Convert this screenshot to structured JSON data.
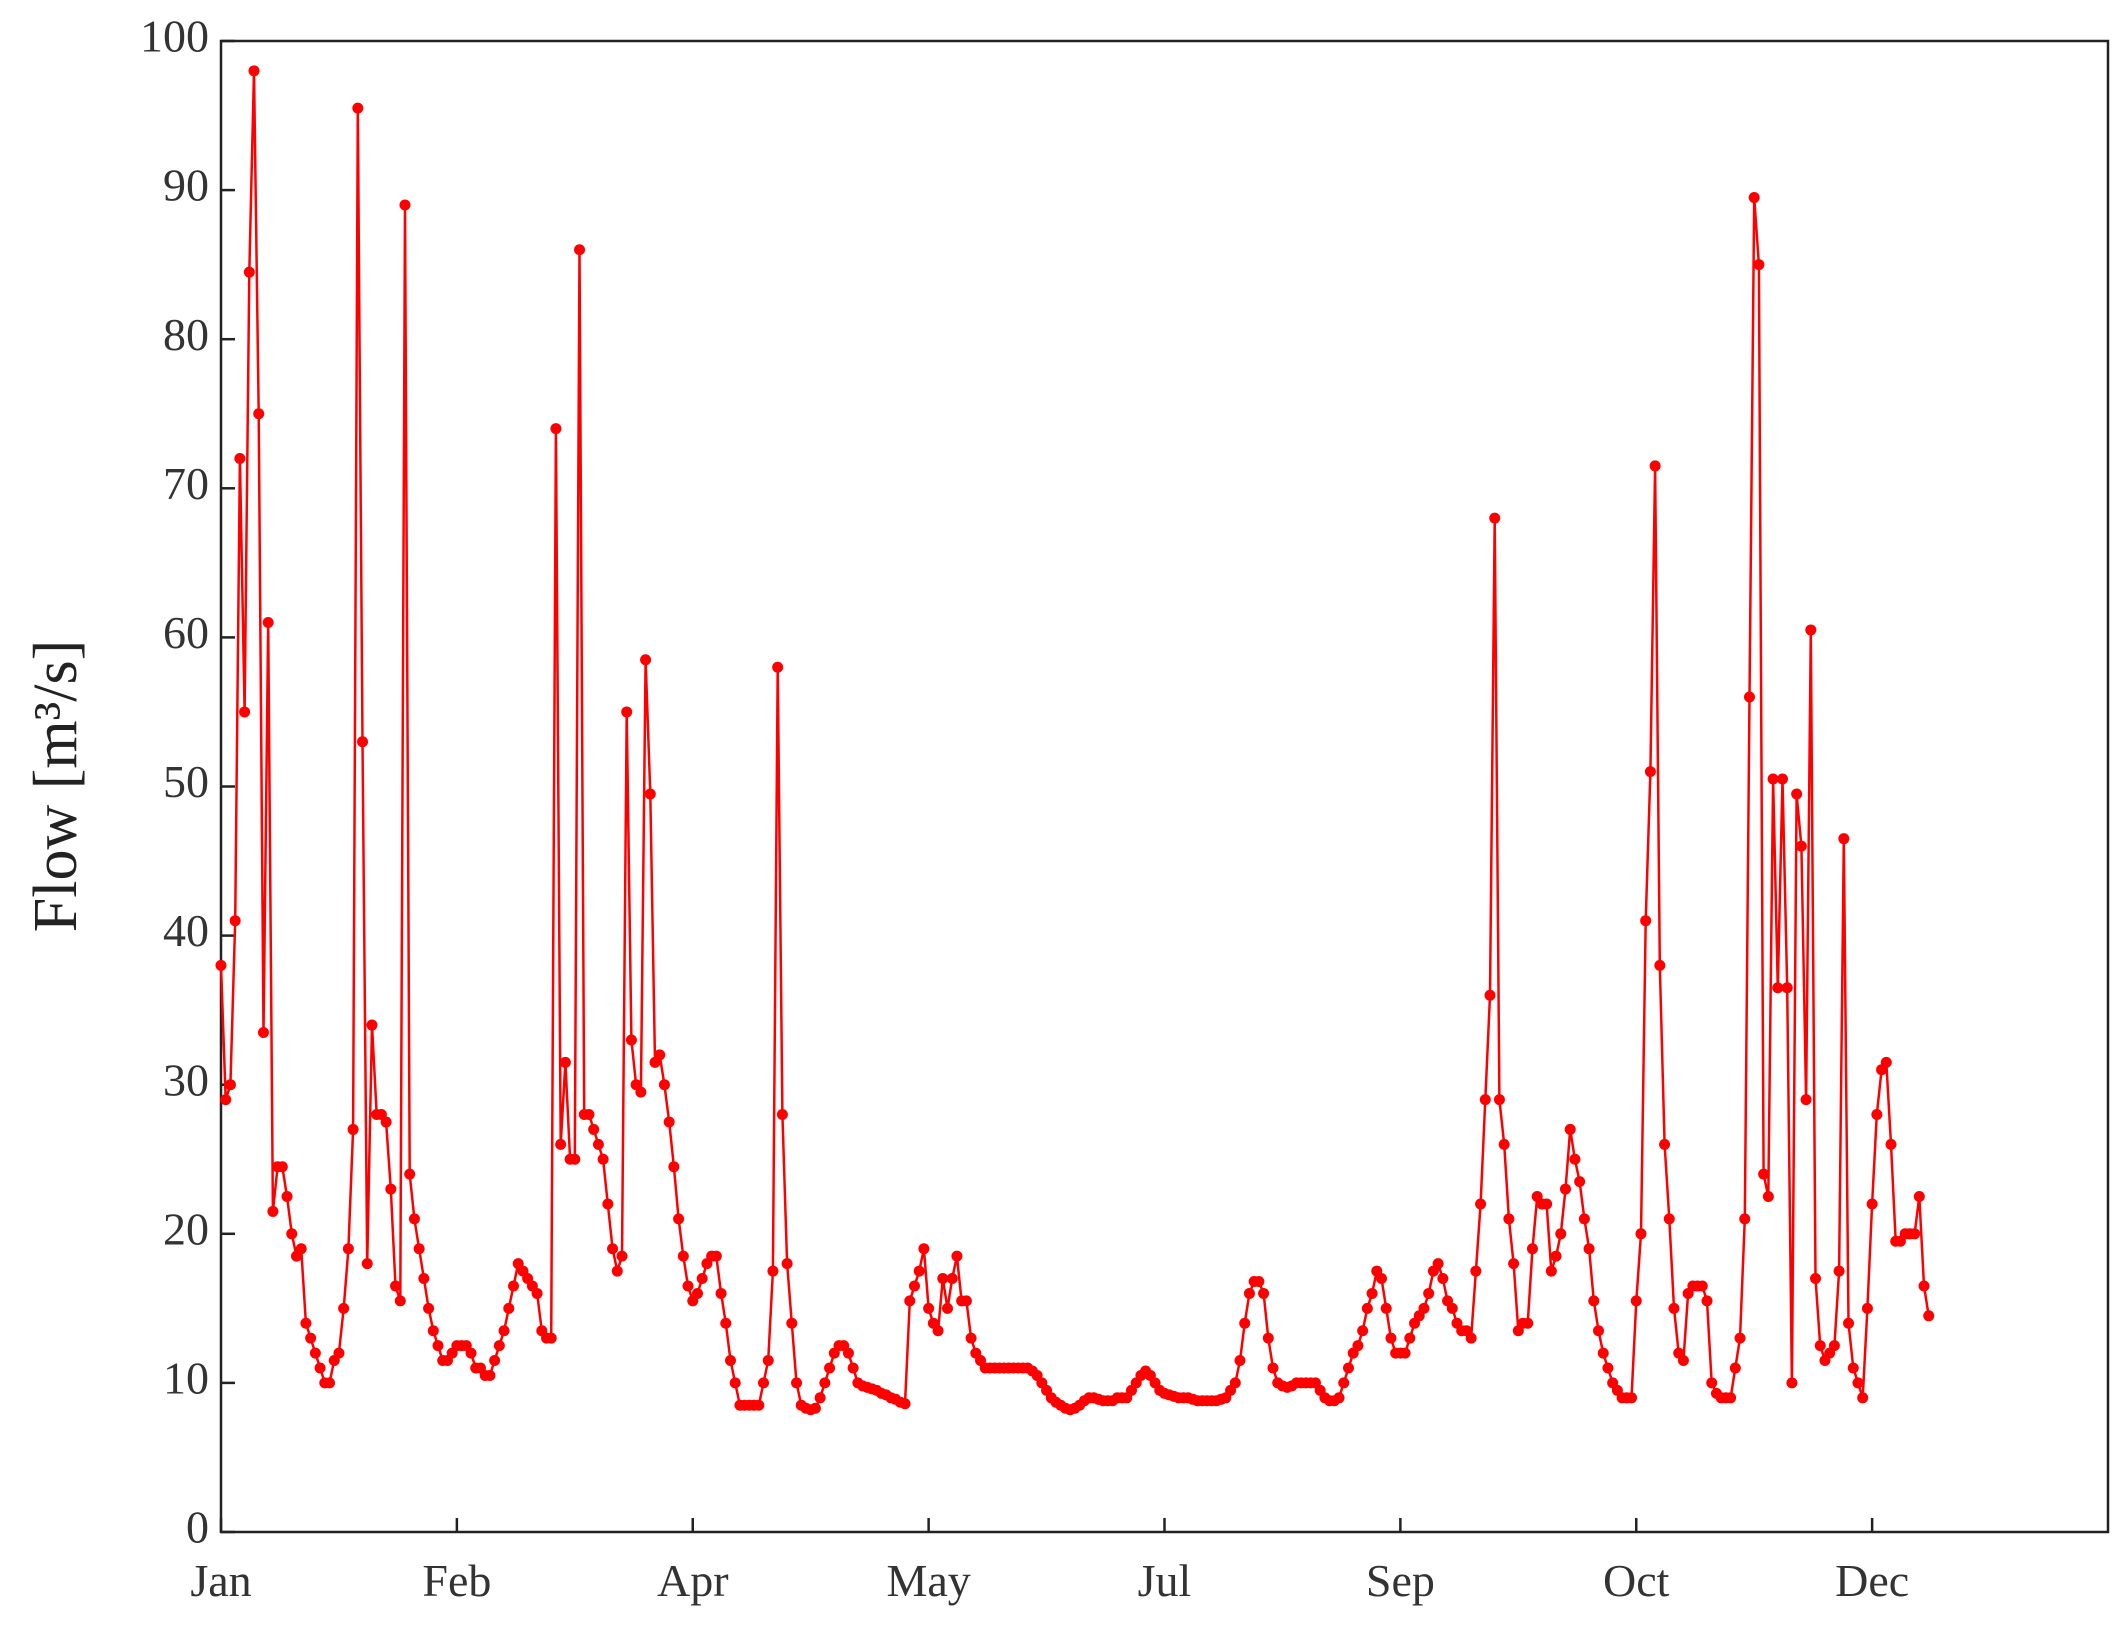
{
  "chart_data": {
    "type": "line",
    "ylabel": "Flow [m³/s]",
    "xlim": [
      0,
      400
    ],
    "xticks": [
      {
        "value": 0,
        "label": "Jan"
      },
      {
        "value": 50,
        "label": "Feb"
      },
      {
        "value": 100,
        "label": "Apr"
      },
      {
        "value": 150,
        "label": "May"
      },
      {
        "value": 200,
        "label": "Jul"
      },
      {
        "value": 250,
        "label": "Sep"
      },
      {
        "value": 300,
        "label": "Oct"
      },
      {
        "value": 350,
        "label": "Dec"
      }
    ],
    "ylim": [
      0,
      100
    ],
    "yticks": [
      0,
      10,
      20,
      30,
      40,
      50,
      60,
      70,
      80,
      90,
      100
    ],
    "grid": false,
    "series": [
      {
        "color": "#ff0000",
        "values": [
          38,
          29,
          30,
          41,
          72,
          55,
          84.5,
          98,
          75,
          33.5,
          61,
          21.5,
          24.5,
          24.5,
          22.5,
          20,
          18.5,
          19,
          14,
          13,
          12,
          11,
          10,
          10,
          11.5,
          12,
          15,
          19,
          27,
          95.5,
          53,
          18,
          34,
          28,
          28,
          27.5,
          23,
          16.5,
          15.5,
          89,
          24,
          21,
          19,
          17,
          15,
          13.5,
          12.5,
          11.5,
          11.5,
          12,
          12.5,
          12.5,
          12.5,
          12,
          11,
          11,
          10.5,
          10.5,
          11.5,
          12.5,
          13.5,
          15,
          16.5,
          18,
          17.5,
          17,
          16.5,
          16,
          13.5,
          13,
          13,
          74,
          26,
          31.5,
          25,
          25,
          86,
          28,
          28,
          27,
          26,
          25,
          22,
          19,
          17.5,
          18.5,
          55,
          33,
          30,
          29.5,
          58.5,
          49.5,
          31.5,
          32,
          30,
          27.5,
          24.5,
          21,
          18.5,
          16.5,
          15.5,
          16,
          17,
          18,
          18.5,
          18.5,
          16,
          14,
          11.5,
          10,
          8.5,
          8.5,
          8.5,
          8.5,
          8.5,
          10,
          11.5,
          17.5,
          58,
          28,
          18,
          14,
          10,
          8.5,
          8.3,
          8.2,
          8.3,
          9,
          10,
          11,
          12,
          12.5,
          12.5,
          12,
          11,
          10,
          9.8,
          9.7,
          9.6,
          9.5,
          9.3,
          9.2,
          9,
          8.9,
          8.7,
          8.6,
          15.5,
          16.5,
          17.5,
          19,
          15,
          14,
          13.5,
          17,
          15,
          17,
          18.5,
          15.5,
          15.5,
          13,
          12,
          11.5,
          11,
          11,
          11,
          11,
          11,
          11,
          11,
          11,
          11,
          11,
          10.8,
          10.5,
          10,
          9.5,
          9,
          8.7,
          8.5,
          8.3,
          8.2,
          8.3,
          8.5,
          8.8,
          9,
          9,
          8.9,
          8.8,
          8.8,
          8.8,
          9,
          9,
          9,
          9.5,
          10,
          10.5,
          10.8,
          10.5,
          10,
          9.5,
          9.3,
          9.2,
          9.1,
          9,
          9,
          9,
          8.9,
          8.8,
          8.8,
          8.8,
          8.8,
          8.8,
          8.9,
          9,
          9.5,
          10,
          11.5,
          14,
          16,
          16.8,
          16.8,
          16,
          13,
          11,
          10,
          9.8,
          9.7,
          9.8,
          10,
          10,
          10,
          10,
          10,
          9.5,
          9,
          8.8,
          8.8,
          9,
          10,
          11,
          12,
          12.5,
          13.5,
          15,
          16,
          17.5,
          17,
          15,
          13,
          12,
          12,
          12,
          13,
          14,
          14.5,
          15,
          16,
          17.5,
          18,
          17,
          15.5,
          15,
          14,
          13.5,
          13.5,
          13,
          17.5,
          22,
          29,
          36,
          68,
          29,
          26,
          21,
          18,
          13.5,
          14,
          14,
          19,
          22.5,
          22,
          22,
          17.5,
          18.5,
          20,
          23,
          27,
          25,
          23.5,
          21,
          19,
          15.5,
          13.5,
          12,
          11,
          10,
          9.5,
          9,
          9,
          9,
          15.5,
          20,
          41,
          51,
          71.5,
          38,
          26,
          21,
          15,
          12,
          11.5,
          16,
          16.5,
          16.5,
          16.5,
          15.5,
          10,
          9.3,
          9,
          9,
          9,
          11,
          13,
          21,
          56,
          89.5,
          85,
          24,
          22.5,
          50.5,
          36.5,
          50.5,
          36.5,
          10,
          49.5,
          46,
          29,
          60.5,
          17,
          12.5,
          11.5,
          12,
          12.5,
          17.5,
          46.5,
          14,
          11,
          10,
          9,
          15,
          22,
          28,
          31,
          31.5,
          26,
          19.5,
          19.5,
          20,
          20,
          20,
          22.5,
          16.5,
          14.5
        ]
      }
    ]
  }
}
